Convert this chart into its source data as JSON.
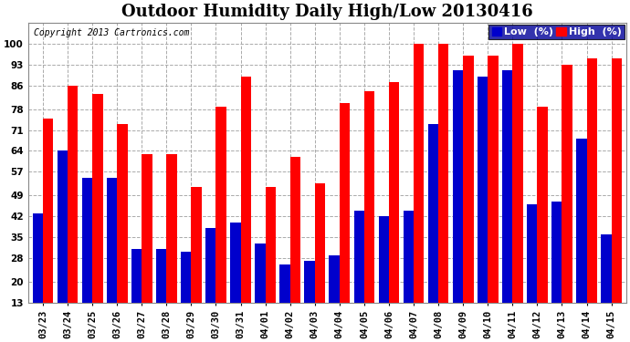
{
  "title": "Outdoor Humidity Daily High/Low 20130416",
  "copyright": "Copyright 2013 Cartronics.com",
  "categories": [
    "03/23",
    "03/24",
    "03/25",
    "03/26",
    "03/27",
    "03/28",
    "03/29",
    "03/30",
    "03/31",
    "04/01",
    "04/02",
    "04/03",
    "04/04",
    "04/05",
    "04/06",
    "04/07",
    "04/08",
    "04/09",
    "04/10",
    "04/11",
    "04/12",
    "04/13",
    "04/14",
    "04/15"
  ],
  "high_values": [
    75,
    86,
    83,
    73,
    63,
    63,
    52,
    79,
    89,
    52,
    62,
    53,
    80,
    84,
    87,
    100,
    100,
    96,
    96,
    100,
    79,
    93,
    95,
    95
  ],
  "low_values": [
    43,
    64,
    55,
    55,
    31,
    31,
    30,
    38,
    40,
    33,
    26,
    27,
    29,
    44,
    42,
    44,
    73,
    91,
    89,
    91,
    46,
    47,
    68,
    36
  ],
  "high_color": "#ff0000",
  "low_color": "#0000cc",
  "bg_color": "#ffffff",
  "plot_bg_color": "#ffffff",
  "grid_color": "#aaaaaa",
  "ylabel_values": [
    13,
    20,
    28,
    35,
    42,
    49,
    57,
    64,
    71,
    78,
    86,
    93,
    100
  ],
  "ylim": [
    13,
    107
  ],
  "bar_width": 0.42,
  "title_fontsize": 13,
  "tick_fontsize": 7.5,
  "legend_low_label": "Low  (%)",
  "legend_high_label": "High  (%)"
}
